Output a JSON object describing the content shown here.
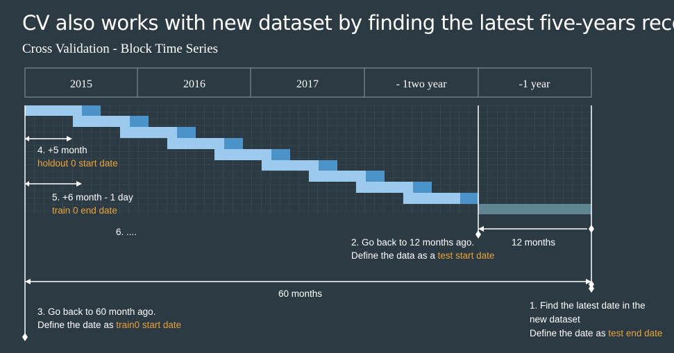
{
  "title": "CV also works with new dataset by finding the latest five-years record",
  "subtitle": "Cross Validation - Block Time Series",
  "timeline_headers": [
    "2015",
    "2016",
    "2017",
    "- 1two year",
    "-1 year"
  ],
  "colors": {
    "background": "#2c3a44",
    "grid_line": "#465660",
    "train_block": "#9ccaee",
    "holdout_block": "#4b93c8",
    "test_block": "#5e8591",
    "accent_text": "#e8a33a",
    "line": "#ffffff"
  },
  "annotations": {
    "step4": {
      "label": "4. +5 month",
      "desc": "holdout 0 start date"
    },
    "step5": {
      "label": "5. +6 month - 1 day",
      "desc": "train 0 end date"
    },
    "step6": {
      "label": "6. ...."
    },
    "step2": {
      "label": "2. Go back to 12 months ago.",
      "desc_prefix": "Define the data as a ",
      "desc_accent": "test start date"
    },
    "twelve_months": "12 months",
    "sixty_months": "60 months",
    "step3": {
      "label": "3. Go back to 60 month ago.",
      "desc_prefix": "Define the date as ",
      "desc_accent": "train0 start date"
    },
    "step1": {
      "line1": "1. Find the latest date in the",
      "line2": "new dataset",
      "desc_prefix": "Define the date as ",
      "desc_accent": "test end date"
    }
  }
}
